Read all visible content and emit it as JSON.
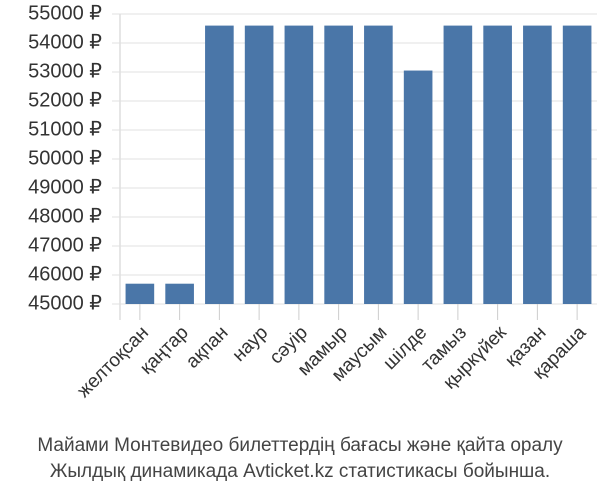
{
  "chart_data": {
    "type": "bar",
    "categories": [
      "желтоқсан",
      "қаңтар",
      "ақпан",
      "наур",
      "сәуір",
      "мамыр",
      "маусым",
      "шілде",
      "тамыз",
      "қыркүйек",
      "қазан",
      "қараша"
    ],
    "values": [
      45700,
      45700,
      54600,
      54600,
      54600,
      54600,
      54600,
      53050,
      54600,
      54600,
      54600,
      54600
    ],
    "color": "#4a76a8",
    "ylim": [
      45000,
      55000
    ],
    "yticks": [
      {
        "value": 45000,
        "label": "45000 ₽"
      },
      {
        "value": 46000,
        "label": "46000 ₽"
      },
      {
        "value": 47000,
        "label": "47000 ₽"
      },
      {
        "value": 48000,
        "label": "48000 ₽"
      },
      {
        "value": 49000,
        "label": "49000 ₽"
      },
      {
        "value": 50000,
        "label": "50000 ₽"
      },
      {
        "value": 51000,
        "label": "51000 ₽"
      },
      {
        "value": 52000,
        "label": "52000 ₽"
      },
      {
        "value": 53000,
        "label": "53000 ₽"
      },
      {
        "value": 54000,
        "label": "54000 ₽"
      },
      {
        "value": 55000,
        "label": "55000 ₽"
      }
    ],
    "grid": true,
    "caption": [
      "Майами Монтевидео билеттердің бағасы және қайта оралу",
      "Жылдық динамикада Avticket.kz статистикасы бойынша."
    ]
  }
}
